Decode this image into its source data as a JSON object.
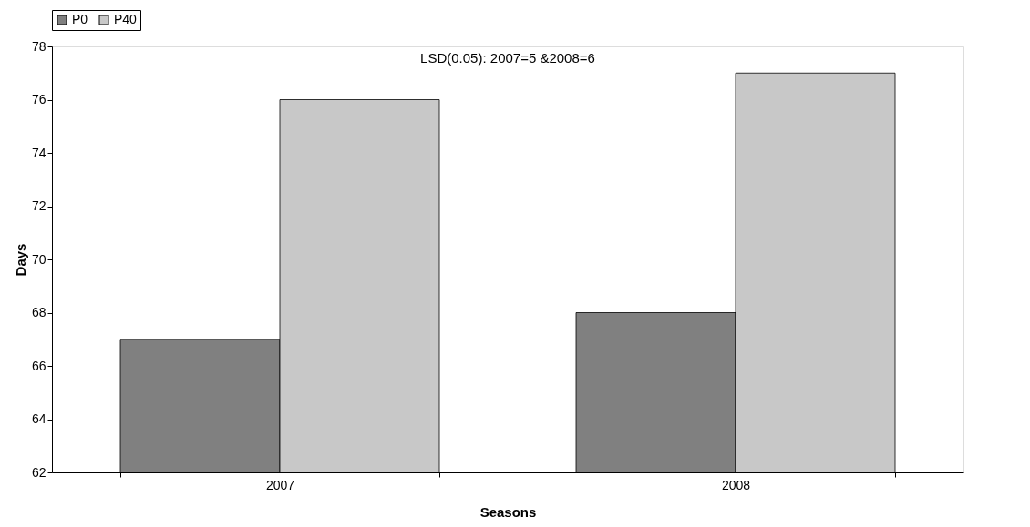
{
  "chart_data": {
    "type": "bar",
    "xlabel": "Seasons",
    "ylabel": "Days",
    "categories": [
      "2007",
      "2008"
    ],
    "series": [
      {
        "name": "P0",
        "color": "#808080",
        "values": [
          67,
          68
        ]
      },
      {
        "name": "P40",
        "color": "#c8c8c8",
        "values": [
          76,
          77
        ]
      }
    ],
    "ylim": [
      62,
      78
    ],
    "yticks": [
      62,
      64,
      66,
      68,
      70,
      72,
      74,
      76,
      78
    ],
    "grid": false,
    "legend": "top",
    "annotations": [
      "LSD(0.05): 2007=5 &2008=6"
    ]
  }
}
